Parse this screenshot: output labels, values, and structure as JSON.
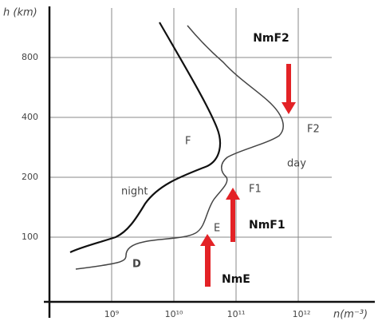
{
  "axes": {
    "y_label": "h (km)",
    "x_label": "n(m⁻³)",
    "y_ticks": [
      "800",
      "400",
      "200",
      "100"
    ],
    "x_ticks": [
      "10⁹",
      "10¹⁰",
      "10¹¹",
      "10¹²"
    ]
  },
  "labels": {
    "nmf2": "NmF2",
    "f2": "F2",
    "day": "day",
    "f": "F",
    "night": "night",
    "f1": "F1",
    "nmf1": "NmF1",
    "e": "E",
    "d": "D",
    "nme": "NmE"
  }
}
